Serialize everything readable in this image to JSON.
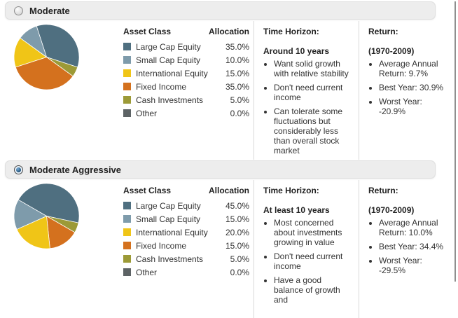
{
  "table": {
    "asset_class_header": "Asset Class",
    "allocation_header": "Allocation"
  },
  "profiles": [
    {
      "title": "Moderate",
      "selected": false,
      "allocations": [
        {
          "label": "Large Cap Equity",
          "pct": 35,
          "pct_label": "35.0%",
          "color": "#4f6f80"
        },
        {
          "label": "Small Cap Equity",
          "pct": 10,
          "pct_label": "10.0%",
          "color": "#7e9bab"
        },
        {
          "label": "International Equity",
          "pct": 15,
          "pct_label": "15.0%",
          "color": "#f0c517"
        },
        {
          "label": "Fixed Income",
          "pct": 35,
          "pct_label": "35.0%",
          "color": "#d4711e"
        },
        {
          "label": "Cash Investments",
          "pct": 5,
          "pct_label": "5.0%",
          "color": "#9c9a37"
        },
        {
          "label": "Other",
          "pct": 0,
          "pct_label": "0.0%",
          "color": "#5d6365"
        }
      ],
      "pie": {
        "start_deg": -18,
        "order": [
          0,
          4,
          3,
          2,
          1
        ]
      },
      "time_horizon": {
        "title": "Time Horizon:",
        "subtitle": "Around 10 years",
        "bullets": [
          "Want solid growth\nwith relative stability",
          "Don't need current\nincome",
          "Can tolerate some\nfluctuations but\nconsiderably less\nthan overall stock\nmarket"
        ]
      },
      "return_info": {
        "title": "Return:",
        "subtitle": "(1970-2009)",
        "bullets": [
          "Average Annual\nReturn: 9.7%",
          "Best Year: 30.9%",
          "Worst Year:\n-20.9%"
        ]
      }
    },
    {
      "title": "Moderate Aggressive",
      "selected": true,
      "allocations": [
        {
          "label": "Large Cap Equity",
          "pct": 45,
          "pct_label": "45.0%",
          "color": "#4f6f80"
        },
        {
          "label": "Small Cap Equity",
          "pct": 15,
          "pct_label": "15.0%",
          "color": "#7e9bab"
        },
        {
          "label": "International Equity",
          "pct": 20,
          "pct_label": "20.0%",
          "color": "#f0c517"
        },
        {
          "label": "Fixed Income",
          "pct": 15,
          "pct_label": "15.0%",
          "color": "#d4711e"
        },
        {
          "label": "Cash Investments",
          "pct": 5,
          "pct_label": "5.0%",
          "color": "#9c9a37"
        },
        {
          "label": "Other",
          "pct": 0,
          "pct_label": "0.0%",
          "color": "#5d6365"
        }
      ],
      "pie": {
        "start_deg": -60,
        "order": [
          0,
          4,
          3,
          2,
          1
        ]
      },
      "time_horizon": {
        "title": "Time Horizon:",
        "subtitle": "At least 10 years",
        "bullets": [
          "Most concerned\nabout investments\ngrowing in value",
          "Don't need current\nincome",
          "Have a good\nbalance of growth and"
        ]
      },
      "return_info": {
        "title": "Return:",
        "subtitle": "(1970-2009)",
        "bullets": [
          "Average Annual\nReturn: 10.0%",
          "Best Year: 34.4%",
          "Worst Year:\n-29.5%"
        ]
      }
    }
  ],
  "chart_data": [
    {
      "type": "pie",
      "title": "Moderate",
      "categories": [
        "Large Cap Equity",
        "Small Cap Equity",
        "International Equity",
        "Fixed Income",
        "Cash Investments",
        "Other"
      ],
      "values": [
        35,
        10,
        15,
        35,
        5,
        0
      ]
    },
    {
      "type": "pie",
      "title": "Moderate Aggressive",
      "categories": [
        "Large Cap Equity",
        "Small Cap Equity",
        "International Equity",
        "Fixed Income",
        "Cash Investments",
        "Other"
      ],
      "values": [
        45,
        15,
        20,
        15,
        5,
        0
      ]
    }
  ]
}
